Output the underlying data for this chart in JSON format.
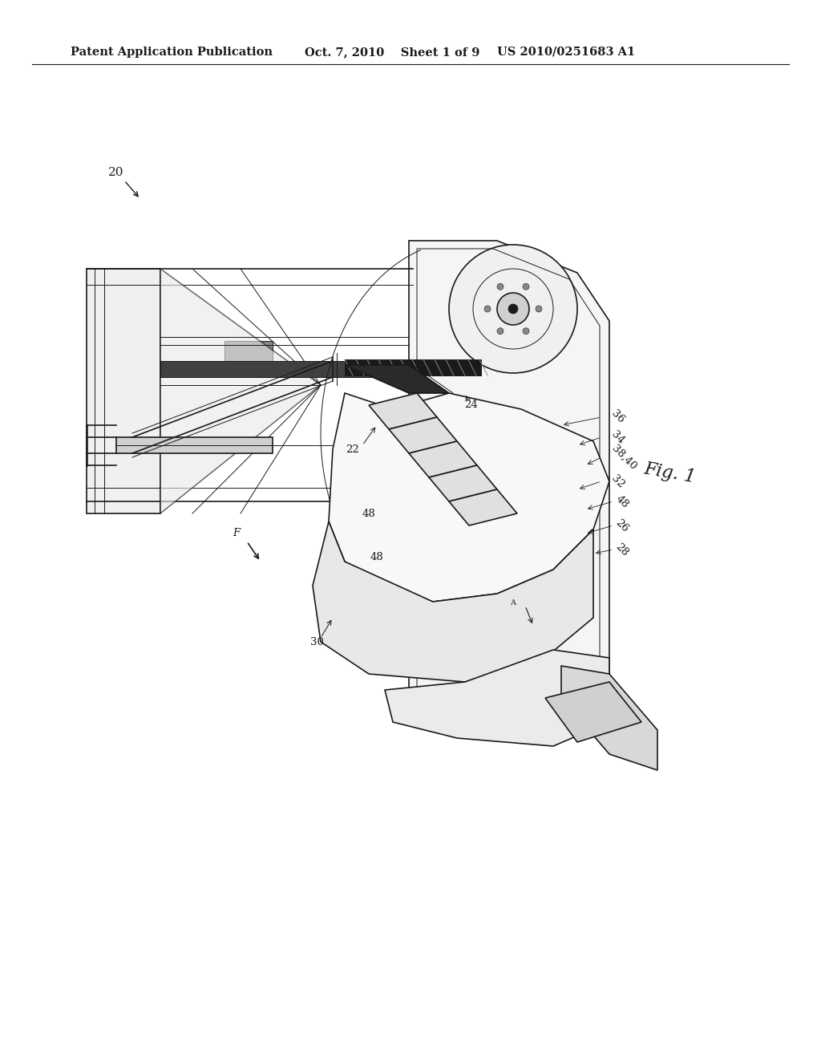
{
  "background_color": "#ffffff",
  "header_left": "Patent Application Publication",
  "header_center": "Oct. 7, 2010    Sheet 1 of 9",
  "header_right": "US 2010/0251683 A1",
  "header_fontsize": 10.5,
  "header_font": "DejaVu Serif",
  "fig_label": "Fig. 1",
  "diagram_color": "#1a1a1a",
  "label_fontsize": 9.5
}
